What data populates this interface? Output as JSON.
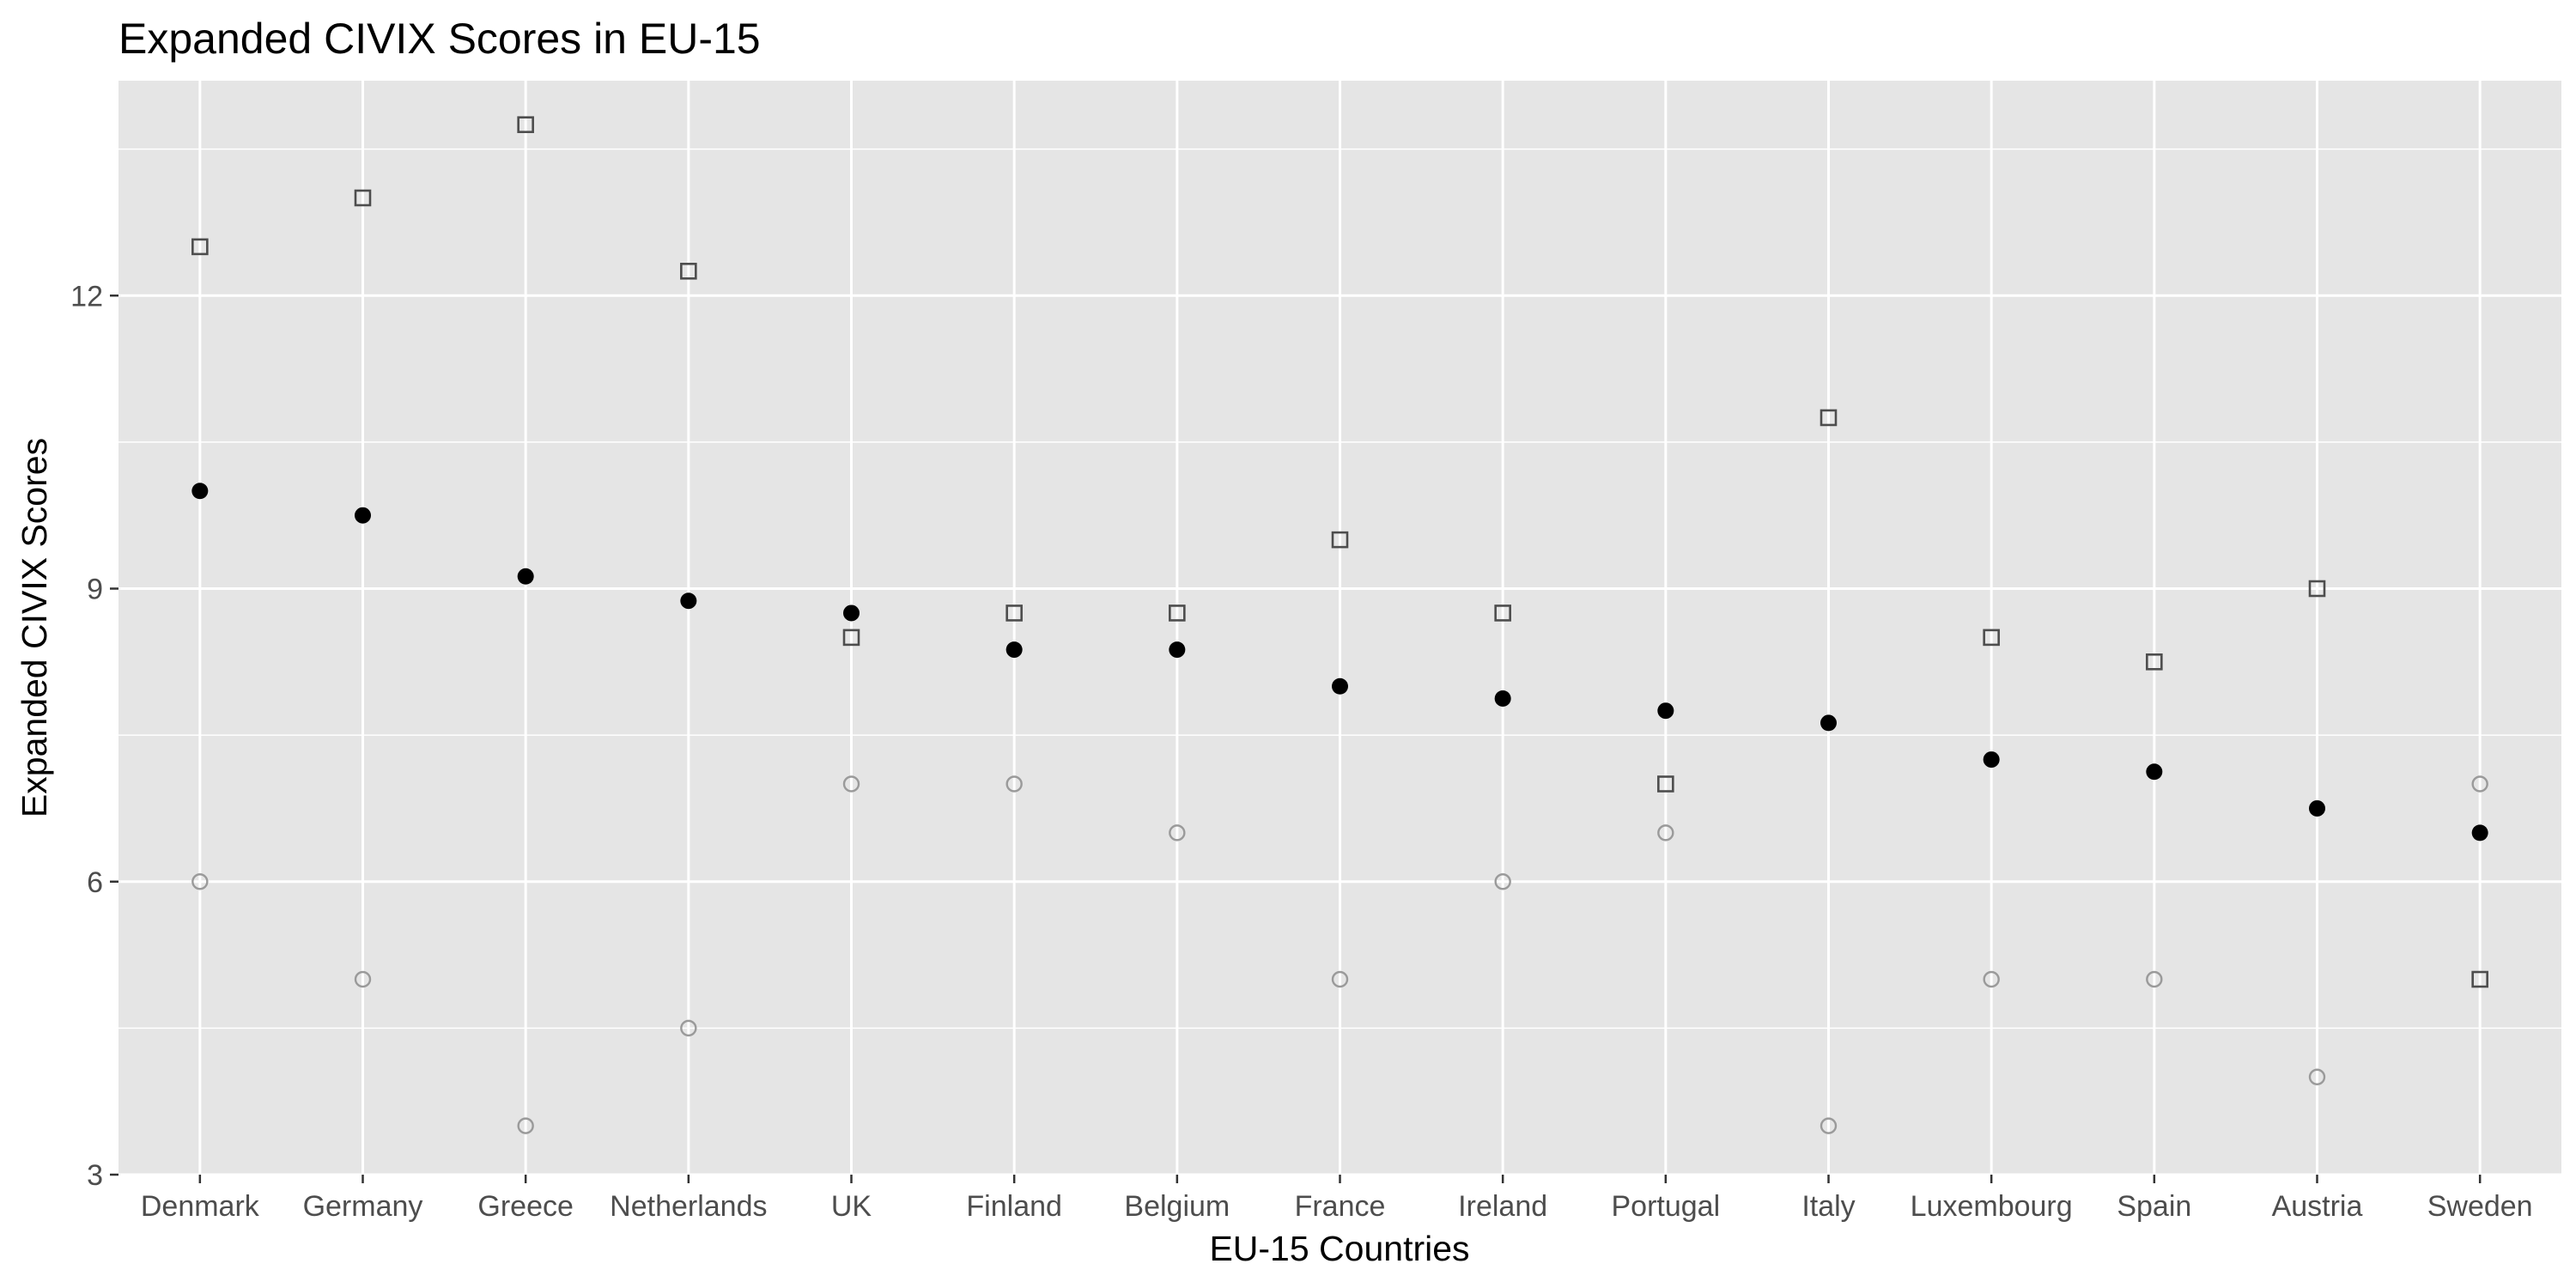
{
  "chart_data": {
    "type": "scatter",
    "title": "Expanded CIVIX Scores in EU-15",
    "xlabel": "EU-15 Countries",
    "ylabel": "Expanded CIVIX Scores",
    "ylim": [
      3,
      14.2
    ],
    "yticks": [
      "3",
      "6",
      "9",
      "12"
    ],
    "grid": true,
    "categories": [
      "Denmark",
      "Germany",
      "Greece",
      "Netherlands",
      "UK",
      "Finland",
      "Belgium",
      "France",
      "Ireland",
      "Portugal",
      "Italy",
      "Luxembourg",
      "Spain",
      "Austria",
      "Sweden"
    ],
    "series": [
      {
        "marker": "square-open",
        "color": "#4d4d4d",
        "values": [
          12.5,
          13.0,
          13.75,
          12.25,
          8.5,
          8.75,
          8.75,
          9.5,
          8.75,
          7.0,
          10.75,
          8.5,
          8.25,
          9.0,
          5.0
        ]
      },
      {
        "marker": "circle-filled",
        "color": "#000000",
        "values": [
          10.0,
          9.75,
          9.125,
          8.875,
          8.75,
          8.375,
          8.375,
          8.0,
          7.875,
          7.75,
          7.625,
          7.25,
          7.125,
          6.75,
          6.5
        ]
      },
      {
        "marker": "circle-open",
        "color": "#9a9a9a",
        "values": [
          6.0,
          5.0,
          3.5,
          4.5,
          7.0,
          7.0,
          6.5,
          5.0,
          6.0,
          6.5,
          3.5,
          5.0,
          5.0,
          4.0,
          7.0
        ]
      }
    ]
  },
  "colors": {
    "panel_background": "#e5e5e5",
    "grid": "#ffffff",
    "tick_text": "#4d4d4d"
  }
}
